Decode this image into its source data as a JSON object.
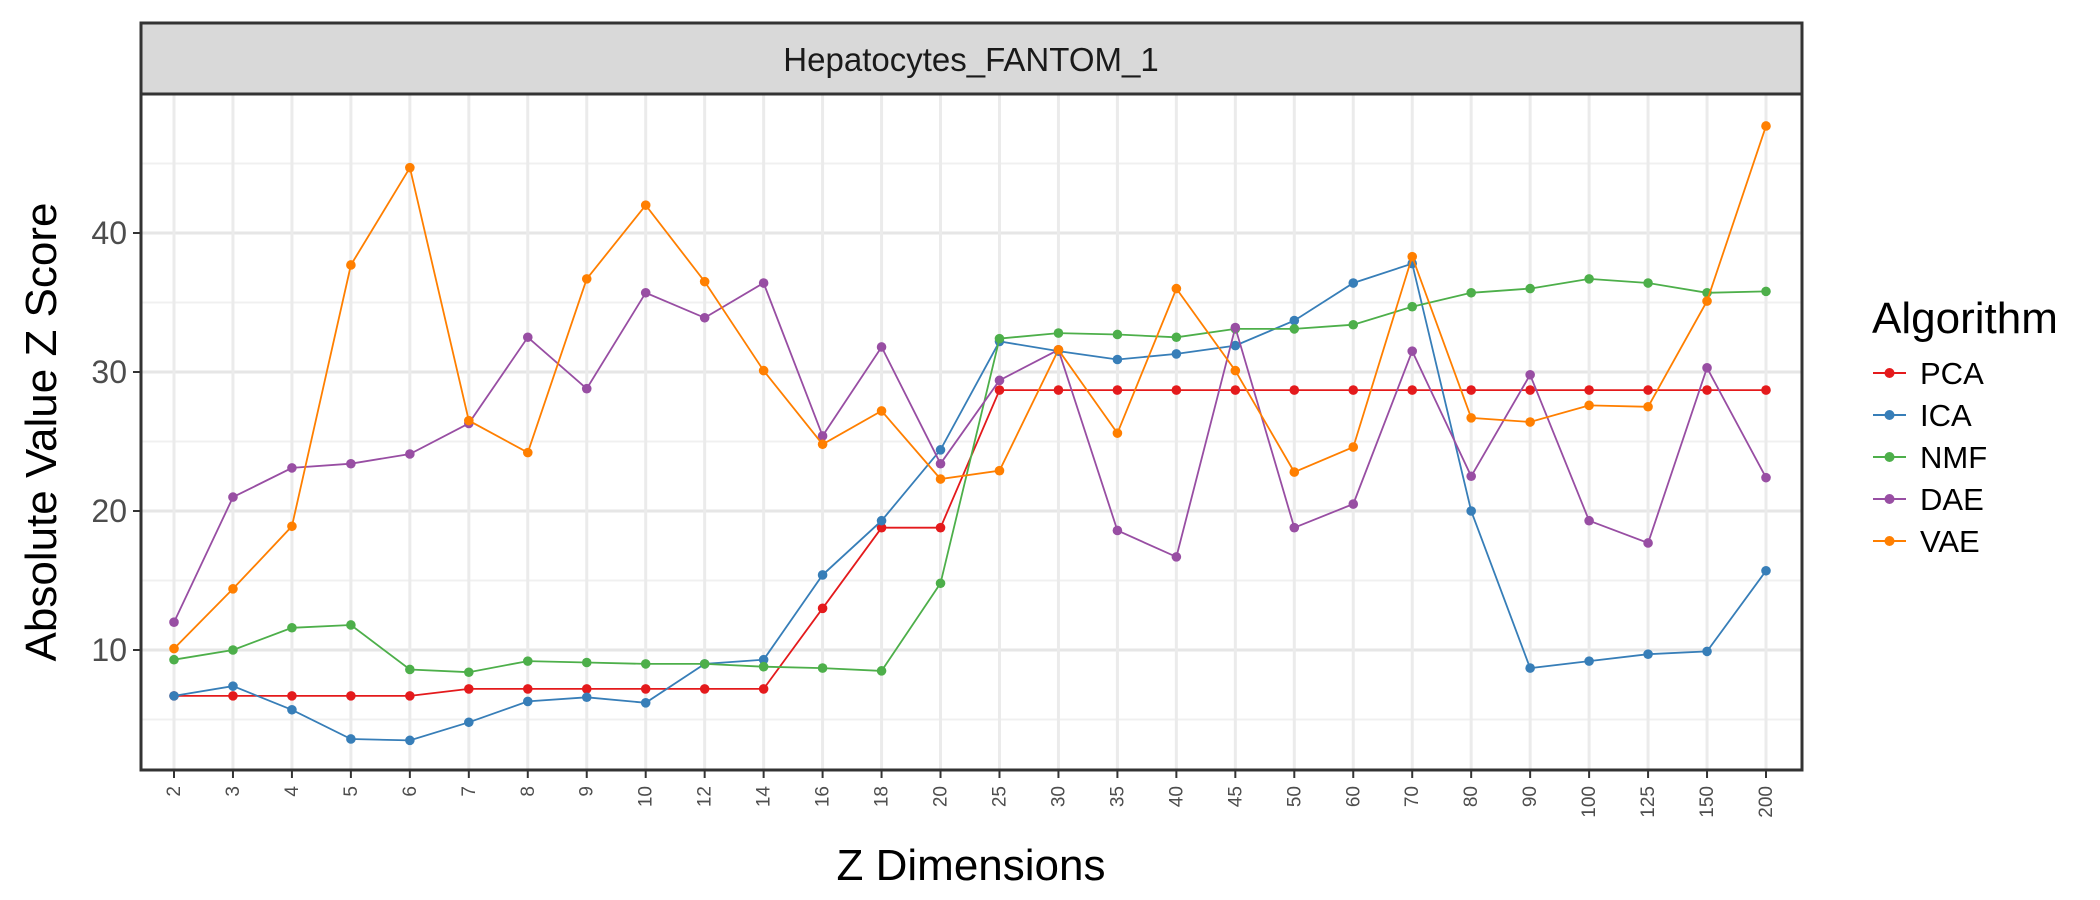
{
  "chart_data": {
    "type": "line",
    "facet_title": "Hepatocytes_FANTOM_1",
    "xlabel": "Z Dimensions",
    "ylabel": "Absolute Value Z Score",
    "categories": [
      "2",
      "3",
      "4",
      "5",
      "6",
      "7",
      "8",
      "9",
      "10",
      "12",
      "14",
      "16",
      "18",
      "20",
      "25",
      "30",
      "35",
      "40",
      "45",
      "50",
      "60",
      "70",
      "80",
      "90",
      "100",
      "125",
      "150",
      "200"
    ],
    "ylim": [
      1.5,
      50
    ],
    "yticks": [
      10,
      20,
      30,
      40
    ],
    "grid": true,
    "legend": {
      "title": "Algorithm",
      "position": "right"
    },
    "series": [
      {
        "name": "PCA",
        "color": "#E41A1C",
        "values": [
          6.7,
          6.7,
          6.7,
          6.7,
          6.7,
          7.2,
          7.2,
          7.2,
          7.2,
          7.2,
          7.2,
          13.0,
          18.8,
          18.8,
          28.7,
          28.7,
          28.7,
          28.7,
          28.7,
          28.7,
          28.7,
          28.7,
          28.7,
          28.7,
          28.7,
          28.7,
          28.7,
          28.7
        ]
      },
      {
        "name": "ICA",
        "color": "#377EB8",
        "values": [
          6.7,
          7.4,
          5.7,
          3.6,
          3.5,
          4.8,
          6.3,
          6.6,
          6.2,
          9.0,
          9.3,
          15.4,
          19.3,
          24.4,
          32.2,
          31.5,
          30.9,
          31.3,
          31.9,
          33.7,
          36.4,
          37.8,
          20.0,
          8.7,
          9.2,
          9.7,
          9.9,
          15.7
        ]
      },
      {
        "name": "NMF",
        "color": "#4DAF4A",
        "values": [
          9.3,
          10.0,
          11.6,
          11.8,
          8.6,
          8.4,
          9.2,
          9.1,
          9.0,
          9.0,
          8.8,
          8.7,
          8.5,
          14.8,
          32.4,
          32.8,
          32.7,
          32.5,
          33.1,
          33.1,
          33.4,
          34.7,
          35.7,
          36.0,
          36.7,
          36.4,
          35.7,
          35.8
        ]
      },
      {
        "name": "DAE",
        "color": "#984EA3",
        "values": [
          12.0,
          21.0,
          23.1,
          23.4,
          24.1,
          26.3,
          32.5,
          28.8,
          35.7,
          33.9,
          36.4,
          25.4,
          31.8,
          23.4,
          29.4,
          31.6,
          18.6,
          16.7,
          33.2,
          18.8,
          20.5,
          31.5,
          22.5,
          29.8,
          19.3,
          17.7,
          30.3,
          22.4
        ]
      },
      {
        "name": "VAE",
        "color": "#FF7F00",
        "values": [
          10.1,
          14.4,
          18.9,
          37.7,
          44.7,
          26.5,
          24.2,
          36.7,
          42.0,
          36.5,
          30.1,
          24.8,
          27.2,
          22.3,
          22.9,
          31.6,
          25.6,
          36.0,
          30.1,
          22.8,
          24.6,
          38.3,
          26.7,
          26.4,
          27.6,
          27.5,
          35.1,
          47.7
        ]
      }
    ]
  }
}
